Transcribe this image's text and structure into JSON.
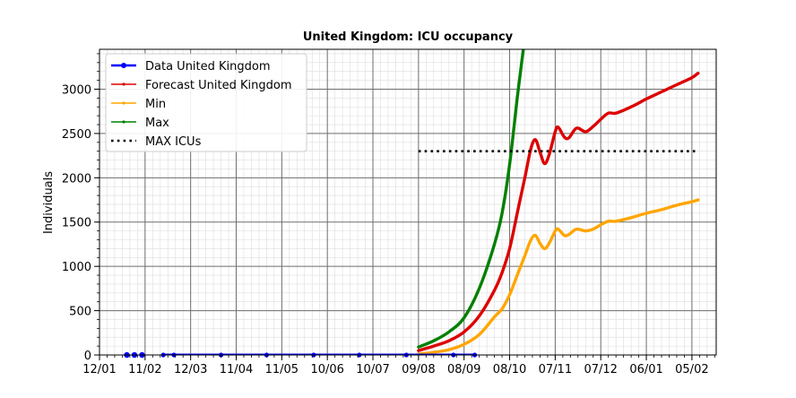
{
  "chart_data": {
    "type": "line",
    "title": "United Kingdom: ICU occupancy",
    "xlabel": "",
    "ylabel": "Individuals",
    "x_tick_labels": [
      "12/01",
      "11/02",
      "12/03",
      "11/04",
      "11/05",
      "10/06",
      "10/07",
      "09/08",
      "08/09",
      "08/10",
      "07/11",
      "07/12",
      "06/01",
      "05/02"
    ],
    "x_tick_dates": [
      "2020-01-12",
      "2020-02-11",
      "2020-03-12",
      "2020-04-11",
      "2020-05-11",
      "2020-06-10",
      "2020-07-10",
      "2020-08-09",
      "2020-09-08",
      "2020-10-08",
      "2020-11-07",
      "2020-12-07",
      "2021-01-06",
      "2021-02-05"
    ],
    "x_range": [
      "2020-01-12",
      "2021-02-21"
    ],
    "ylim": [
      0,
      3450
    ],
    "y_ticks": [
      0,
      500,
      1000,
      1500,
      2000,
      2500,
      3000
    ],
    "grid": true,
    "legend_position": "top-left",
    "series": [
      {
        "name": "Data United Kingdom",
        "color": "#0000ff",
        "style": "line-dot",
        "points": [
          [
            "2020-01-30",
            0
          ],
          [
            "2020-02-04",
            0
          ],
          [
            "2020-02-09",
            0
          ],
          [
            "2020-02-23",
            0
          ],
          [
            "2020-03-01",
            0
          ],
          [
            "2020-04-01",
            0
          ],
          [
            "2020-05-01",
            0
          ],
          [
            "2020-06-01",
            0
          ],
          [
            "2020-07-01",
            0
          ],
          [
            "2020-08-01",
            0
          ],
          [
            "2020-09-01",
            0
          ],
          [
            "2020-09-15",
            0
          ]
        ]
      },
      {
        "name": "Forecast United Kingdom",
        "color": "#dd0000",
        "style": "line",
        "points": [
          [
            "2020-08-09",
            50
          ],
          [
            "2020-08-19",
            100
          ],
          [
            "2020-08-29",
            160
          ],
          [
            "2020-09-08",
            260
          ],
          [
            "2020-09-18",
            440
          ],
          [
            "2020-09-28",
            730
          ],
          [
            "2020-10-03",
            930
          ],
          [
            "2020-10-08",
            1200
          ],
          [
            "2020-10-13",
            1600
          ],
          [
            "2020-10-18",
            2000
          ],
          [
            "2020-10-22",
            2330
          ],
          [
            "2020-10-25",
            2430
          ],
          [
            "2020-10-28",
            2290
          ],
          [
            "2020-10-31",
            2160
          ],
          [
            "2020-11-03",
            2260
          ],
          [
            "2020-11-07",
            2520
          ],
          [
            "2020-11-09",
            2570
          ],
          [
            "2020-11-13",
            2460
          ],
          [
            "2020-11-16",
            2450
          ],
          [
            "2020-11-21",
            2560
          ],
          [
            "2020-11-27",
            2520
          ],
          [
            "2020-12-02",
            2580
          ],
          [
            "2020-12-07",
            2660
          ],
          [
            "2020-12-12",
            2730
          ],
          [
            "2020-12-17",
            2730
          ],
          [
            "2020-12-27",
            2800
          ],
          [
            "2021-01-06",
            2890
          ],
          [
            "2021-01-16",
            2970
          ],
          [
            "2021-01-26",
            3050
          ],
          [
            "2021-02-05",
            3130
          ],
          [
            "2021-02-09",
            3180
          ]
        ]
      },
      {
        "name": "Min",
        "color": "#ffa500",
        "style": "line",
        "points": [
          [
            "2020-08-09",
            10
          ],
          [
            "2020-08-19",
            30
          ],
          [
            "2020-08-29",
            60
          ],
          [
            "2020-09-08",
            120
          ],
          [
            "2020-09-18",
            230
          ],
          [
            "2020-09-28",
            430
          ],
          [
            "2020-10-03",
            520
          ],
          [
            "2020-10-08",
            680
          ],
          [
            "2020-10-13",
            900
          ],
          [
            "2020-10-18",
            1120
          ],
          [
            "2020-10-22",
            1300
          ],
          [
            "2020-10-25",
            1350
          ],
          [
            "2020-10-28",
            1260
          ],
          [
            "2020-10-31",
            1200
          ],
          [
            "2020-11-03",
            1260
          ],
          [
            "2020-11-07",
            1400
          ],
          [
            "2020-11-09",
            1420
          ],
          [
            "2020-11-13",
            1350
          ],
          [
            "2020-11-16",
            1360
          ],
          [
            "2020-11-21",
            1420
          ],
          [
            "2020-11-27",
            1400
          ],
          [
            "2020-12-02",
            1420
          ],
          [
            "2020-12-07",
            1470
          ],
          [
            "2020-12-12",
            1510
          ],
          [
            "2020-12-17",
            1510
          ],
          [
            "2020-12-27",
            1550
          ],
          [
            "2021-01-06",
            1600
          ],
          [
            "2021-01-16",
            1640
          ],
          [
            "2021-01-26",
            1690
          ],
          [
            "2021-02-05",
            1730
          ],
          [
            "2021-02-09",
            1750
          ]
        ]
      },
      {
        "name": "Max",
        "color": "#008000",
        "style": "line",
        "points": [
          [
            "2020-08-09",
            90
          ],
          [
            "2020-08-19",
            160
          ],
          [
            "2020-08-29",
            260
          ],
          [
            "2020-09-08",
            420
          ],
          [
            "2020-09-18",
            750
          ],
          [
            "2020-09-28",
            1250
          ],
          [
            "2020-10-03",
            1600
          ],
          [
            "2020-10-08",
            2150
          ],
          [
            "2020-10-13",
            2900
          ],
          [
            "2020-10-17",
            3450
          ]
        ]
      },
      {
        "name": "MAX ICUs",
        "color": "#000000",
        "style": "dotted",
        "points": [
          [
            "2020-08-09",
            2300
          ],
          [
            "2021-02-09",
            2300
          ]
        ]
      }
    ]
  }
}
